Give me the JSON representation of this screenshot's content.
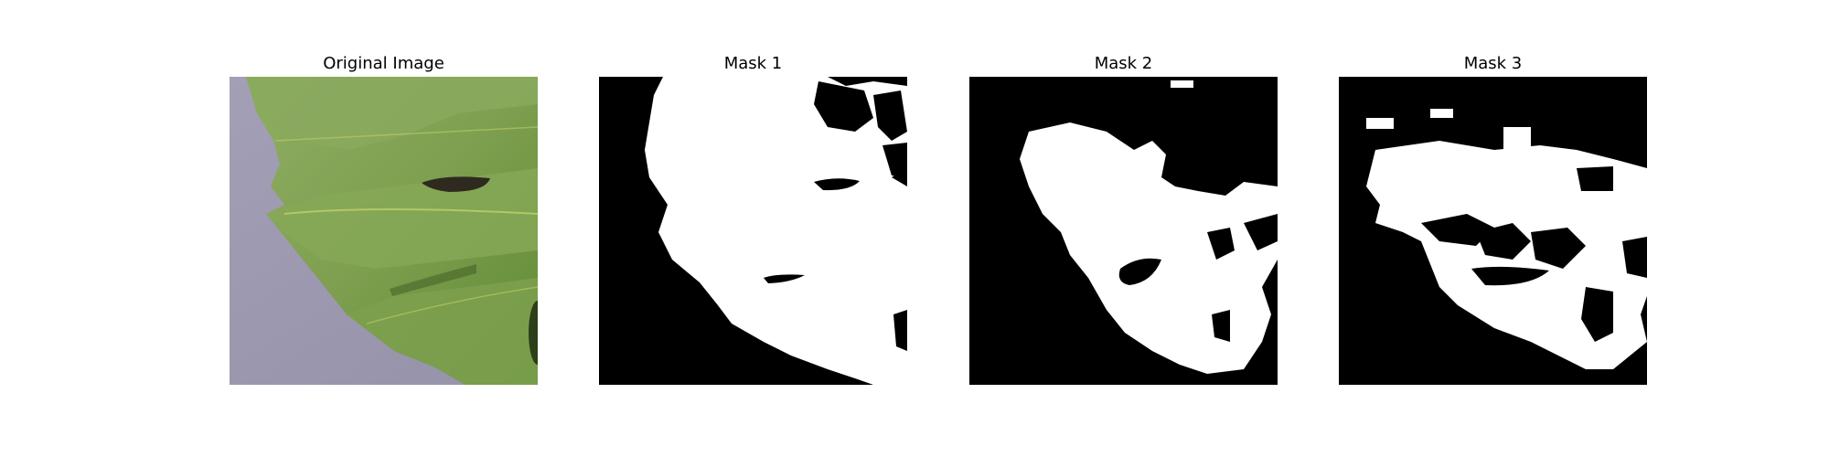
{
  "panels": [
    {
      "title": "Original Image",
      "kind": "photo",
      "subject": "leaf"
    },
    {
      "title": "Mask 1",
      "kind": "binary-mask"
    },
    {
      "title": "Mask 2",
      "kind": "binary-mask"
    },
    {
      "title": "Mask 3",
      "kind": "binary-mask"
    }
  ],
  "colors": {
    "background": "#ffffff",
    "mask_foreground": "#ffffff",
    "mask_background": "#000000",
    "leaf_green": "#7ea654",
    "leaf_dark": "#4a6b28",
    "surface_lavender": "#a8a4bd"
  }
}
